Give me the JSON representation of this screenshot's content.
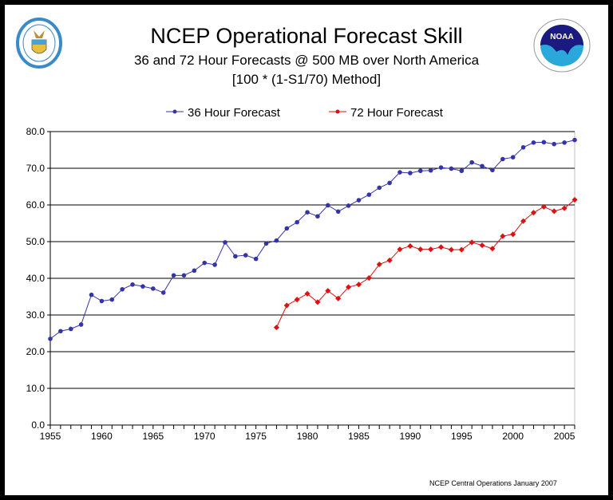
{
  "title": "NCEP Operational Forecast Skill",
  "subtitle": "36 and 72 Hour Forecasts @ 500 MB over North America",
  "method": "[100 * (1-S1/70) Method]",
  "footer": "NCEP Central Operations January 2007",
  "logos": {
    "left": "Department of Commerce United States of America",
    "right": "NOAA"
  },
  "chart_data": {
    "type": "line",
    "title": "NCEP Operational Forecast Skill",
    "ylim": [
      0,
      80
    ],
    "xlim": [
      1955,
      2006
    ],
    "yticks": [
      "0.0",
      "10.0",
      "20.0",
      "30.0",
      "40.0",
      "50.0",
      "60.0",
      "70.0",
      "80.0"
    ],
    "xticks": [
      "1955",
      "1960",
      "1965",
      "1970",
      "1975",
      "1980",
      "1985",
      "1990",
      "1995",
      "2000",
      "2005"
    ],
    "grid": true,
    "legend": "top",
    "series": [
      {
        "name": "36 Hour Forecast",
        "color": "#3333aa",
        "x": [
          1955,
          1956,
          1957,
          1958,
          1959,
          1960,
          1961,
          1962,
          1963,
          1964,
          1965,
          1966,
          1967,
          1968,
          1969,
          1970,
          1971,
          1972,
          1973,
          1974,
          1975,
          1976,
          1977,
          1978,
          1979,
          1980,
          1981,
          1982,
          1983,
          1984,
          1985,
          1986,
          1987,
          1988,
          1989,
          1990,
          1991,
          1992,
          1993,
          1994,
          1995,
          1996,
          1997,
          1998,
          1999,
          2000,
          2001,
          2002,
          2003,
          2004,
          2005,
          2006
        ],
        "values": [
          23.5,
          25.6,
          26.2,
          27.4,
          35.5,
          33.8,
          34.2,
          37.0,
          38.3,
          37.8,
          37.2,
          36.1,
          40.8,
          40.8,
          42.1,
          44.2,
          43.7,
          49.8,
          46.0,
          46.3,
          45.3,
          49.5,
          50.3,
          53.6,
          55.3,
          58.0,
          56.9,
          59.9,
          58.2,
          59.8,
          61.3,
          62.8,
          64.7,
          66.0,
          68.9,
          68.7,
          69.3,
          69.4,
          70.2,
          69.9,
          69.3,
          71.6,
          70.6,
          69.5,
          72.5,
          73.0,
          75.7,
          77.0,
          77.1,
          76.6,
          77.0,
          77.7
        ]
      },
      {
        "name": "72 Hour Forecast",
        "color": "#dd1111",
        "x": [
          1977,
          1978,
          1979,
          1980,
          1981,
          1982,
          1983,
          1984,
          1985,
          1986,
          1987,
          1988,
          1989,
          1990,
          1991,
          1992,
          1993,
          1994,
          1995,
          1996,
          1997,
          1998,
          1999,
          2000,
          2001,
          2002,
          2003,
          2004,
          2005,
          2006
        ],
        "values": [
          26.6,
          32.6,
          34.2,
          35.8,
          33.5,
          36.6,
          34.5,
          37.6,
          38.3,
          40.1,
          43.8,
          44.9,
          47.9,
          48.8,
          47.9,
          47.9,
          48.5,
          47.8,
          47.8,
          49.8,
          49.0,
          48.1,
          51.5,
          52.0,
          55.6,
          57.9,
          59.5,
          58.3,
          59.1,
          61.4
        ]
      }
    ]
  }
}
